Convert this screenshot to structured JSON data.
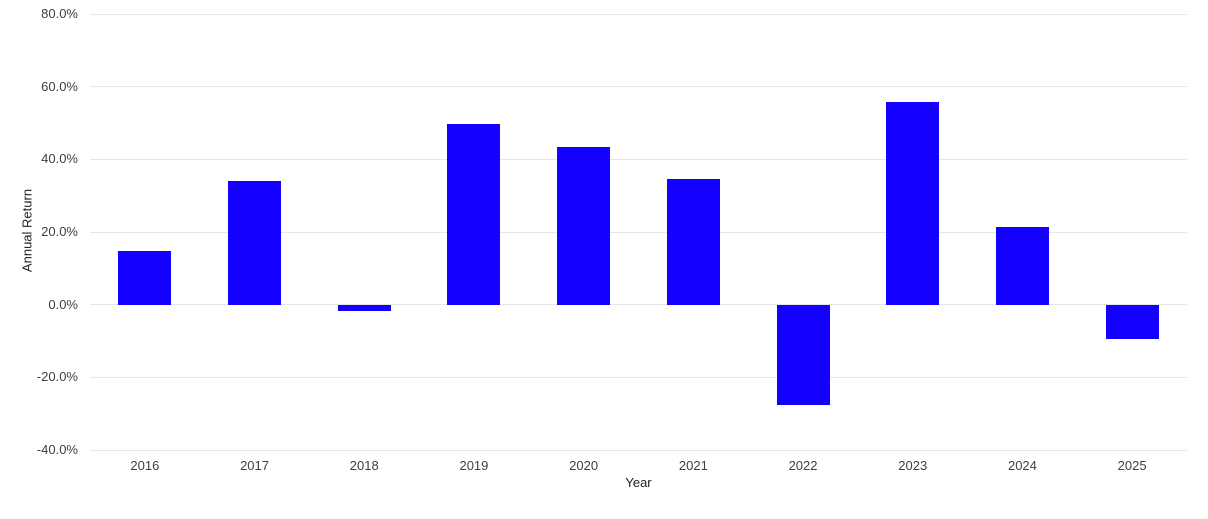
{
  "chart_data": {
    "type": "bar",
    "title": "",
    "xlabel": "Year",
    "ylabel": "Annual Return",
    "categories": [
      "2016",
      "2017",
      "2018",
      "2019",
      "2020",
      "2021",
      "2022",
      "2023",
      "2024",
      "2025"
    ],
    "values": [
      14.8,
      34.0,
      -1.8,
      49.6,
      43.4,
      34.5,
      -27.7,
      55.8,
      21.4,
      -9.5
    ],
    "series_name": "Annual Return",
    "ylim": [
      -40,
      80
    ],
    "y_ticks": [
      {
        "value": 80,
        "label": "80.0%"
      },
      {
        "value": 60,
        "label": "60.0%"
      },
      {
        "value": 40,
        "label": "40.0%"
      },
      {
        "value": 20,
        "label": "20.0%"
      },
      {
        "value": 0,
        "label": "0.0%"
      },
      {
        "value": -20,
        "label": "-20.0%"
      },
      {
        "value": -40,
        "label": "-40.0%"
      }
    ],
    "grid": true,
    "legend_position": "none",
    "colors": {
      "bar": "#1400ff",
      "gridline": "#e6e6e6",
      "tick_text": "#404040",
      "axis_title_text": "#222222",
      "background": "#ffffff"
    }
  }
}
